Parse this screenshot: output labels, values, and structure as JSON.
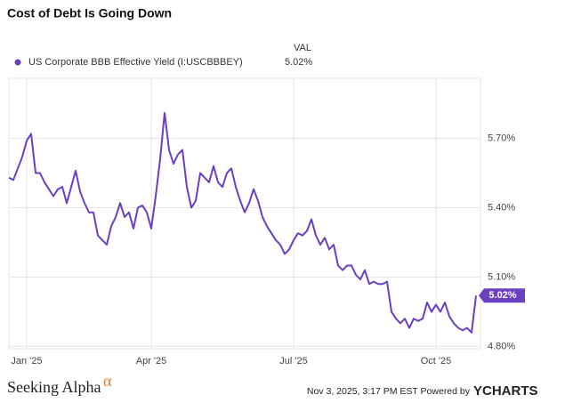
{
  "chart_data": {
    "type": "line",
    "title": "Cost of Debt Is Going Down",
    "series": [
      {
        "name": "US Corporate BBB Effective Yield (I:USCBBBEY)",
        "color": "#6a3fc1",
        "values": [
          5.53,
          5.52,
          5.57,
          5.62,
          5.69,
          5.72,
          5.55,
          5.55,
          5.51,
          5.48,
          5.45,
          5.48,
          5.49,
          5.42,
          5.49,
          5.56,
          5.47,
          5.42,
          5.38,
          5.38,
          5.28,
          5.26,
          5.24,
          5.32,
          5.36,
          5.42,
          5.36,
          5.38,
          5.31,
          5.4,
          5.41,
          5.38,
          5.31,
          5.45,
          5.61,
          5.81,
          5.65,
          5.59,
          5.63,
          5.65,
          5.49,
          5.4,
          5.43,
          5.55,
          5.53,
          5.51,
          5.58,
          5.51,
          5.49,
          5.55,
          5.57,
          5.49,
          5.43,
          5.38,
          5.42,
          5.48,
          5.43,
          5.36,
          5.32,
          5.29,
          5.26,
          5.24,
          5.2,
          5.22,
          5.26,
          5.29,
          5.28,
          5.3,
          5.35,
          5.28,
          5.24,
          5.27,
          5.22,
          5.24,
          5.15,
          5.13,
          5.15,
          5.15,
          5.11,
          5.09,
          5.13,
          5.07,
          5.08,
          5.07,
          5.07,
          5.08,
          4.95,
          4.92,
          4.9,
          4.92,
          4.88,
          4.92,
          4.91,
          4.92,
          4.99,
          4.95,
          4.98,
          4.95,
          4.99,
          4.93,
          4.9,
          4.88,
          4.87,
          4.88,
          4.86,
          5.02
        ]
      }
    ],
    "legend_header": "VAL",
    "current": {
      "value": 5.02,
      "label": "5.02%"
    },
    "xlim": [
      0,
      105
    ],
    "xticks": [
      {
        "value": 4,
        "label": "Jan '25"
      },
      {
        "value": 32,
        "label": "Apr '25"
      },
      {
        "value": 64,
        "label": "Jul '25"
      },
      {
        "value": 96,
        "label": "Oct '25"
      }
    ],
    "ylim": [
      4.79,
      5.96
    ],
    "yticks": [
      {
        "value": 4.8,
        "label": "4.80%"
      },
      {
        "value": 5.1,
        "label": "5.10%"
      },
      {
        "value": 5.4,
        "label": "5.40%"
      },
      {
        "value": 5.7,
        "label": "5.70%"
      }
    ],
    "grid": true
  },
  "footer": {
    "brand": "Seeking Alpha",
    "brand_mark": "α",
    "timestamp": "Nov 3, 2025, 3:17 PM EST Powered by",
    "provider": "YCHARTS"
  }
}
